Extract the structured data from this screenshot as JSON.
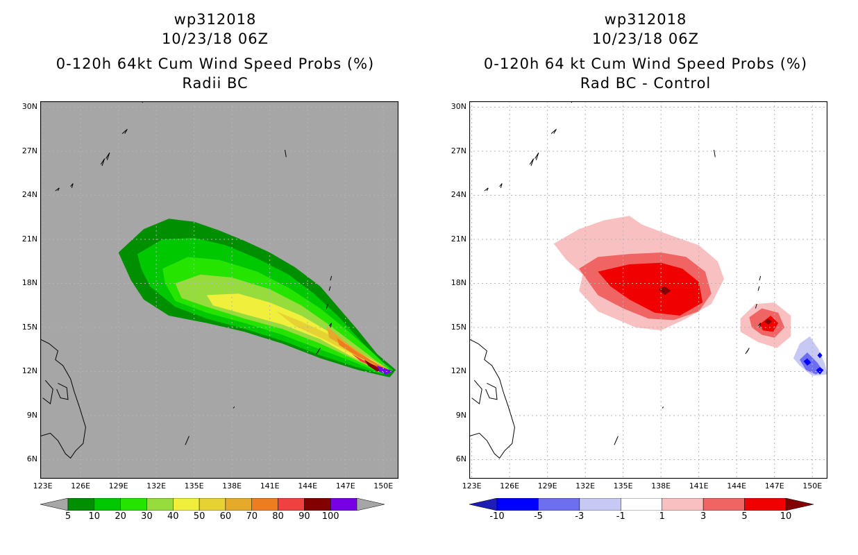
{
  "left": {
    "storm": "wp312018",
    "date": "10/23/18 06Z",
    "title": "0-120h 64kt Cum Wind Speed Probs (%)",
    "subtitle": "Radii BC"
  },
  "right": {
    "storm": "wp312018",
    "date": "10/23/18 06Z",
    "title": "0-120h 64 kt Cum Wind Speed Probs (%)",
    "subtitle": "Rad BC - Control"
  },
  "chart_data": [
    {
      "type": "heatmap",
      "panel": "left",
      "title": "0-120h 64kt Cum Wind Speed Probs (%)",
      "subtitle": "Radii BC",
      "x_ticks": [
        "123E",
        "126E",
        "129E",
        "132E",
        "135E",
        "138E",
        "141E",
        "144E",
        "147E",
        "150E"
      ],
      "y_ticks": [
        "30N",
        "27N",
        "24N",
        "21N",
        "18N",
        "15N",
        "12N",
        "9N",
        "6N"
      ],
      "xlim": [
        122.8,
        151.2
      ],
      "ylim": [
        4.7,
        30.4
      ],
      "background": "#a6a6a6",
      "colorbar": {
        "labels": [
          "5",
          "10",
          "20",
          "30",
          "40",
          "50",
          "60",
          "70",
          "80",
          "90",
          "100"
        ],
        "colors": [
          "#008f00",
          "#00c800",
          "#24e400",
          "#96dc3c",
          "#f0f03c",
          "#e6d232",
          "#e6aa2a",
          "#ee7d20",
          "#f04040",
          "#820000",
          "#7800e6"
        ]
      },
      "contours": [
        {
          "level": 5,
          "points": [
            [
              129,
              20.1
            ],
            [
              131,
              21.7
            ],
            [
              133,
              22.4
            ],
            [
              135,
              22.2
            ],
            [
              137,
              21.6
            ],
            [
              139,
              20.9
            ],
            [
              141,
              20.1
            ],
            [
              143,
              19.1
            ],
            [
              145,
              17.8
            ],
            [
              146.5,
              16.3
            ],
            [
              148,
              14.8
            ],
            [
              149.5,
              13.2
            ],
            [
              151,
              12.1
            ],
            [
              150.5,
              11.6
            ],
            [
              148,
              12.1
            ],
            [
              145,
              12.9
            ],
            [
              142,
              13.9
            ],
            [
              139,
              14.7
            ],
            [
              136,
              15.3
            ],
            [
              133,
              15.8
            ],
            [
              131,
              16.9
            ],
            [
              130,
              18.2
            ]
          ]
        },
        {
          "level": 10,
          "points": [
            [
              130.5,
              20
            ],
            [
              132.5,
              21
            ],
            [
              135,
              21.1
            ],
            [
              137.5,
              20.6
            ],
            [
              140,
              19.7
            ],
            [
              142.5,
              18.6
            ],
            [
              144.5,
              17.3
            ],
            [
              146.5,
              15.7
            ],
            [
              148.3,
              14
            ],
            [
              150,
              12.6
            ],
            [
              150.8,
              12.1
            ],
            [
              150,
              11.8
            ],
            [
              147.5,
              12.4
            ],
            [
              145,
              13.1
            ],
            [
              142,
              14.1
            ],
            [
              139,
              14.9
            ],
            [
              136,
              15.6
            ],
            [
              133.5,
              16.4
            ],
            [
              131.5,
              17.8
            ],
            [
              130.8,
              19
            ]
          ]
        },
        {
          "level": 20,
          "points": [
            [
              132.5,
              19
            ],
            [
              134.5,
              19.8
            ],
            [
              137,
              19.6
            ],
            [
              140,
              18.8
            ],
            [
              142.5,
              17.7
            ],
            [
              145,
              16.3
            ],
            [
              147,
              14.9
            ],
            [
              149,
              13.4
            ],
            [
              150.5,
              12.2
            ],
            [
              149.5,
              12
            ],
            [
              147.5,
              12.7
            ],
            [
              145,
              13.5
            ],
            [
              142,
              14.5
            ],
            [
              139,
              15.3
            ],
            [
              136,
              16
            ],
            [
              133.5,
              16.8
            ],
            [
              132.7,
              18
            ]
          ]
        },
        {
          "level": 30,
          "points": [
            [
              133.5,
              18
            ],
            [
              135.5,
              18.6
            ],
            [
              138,
              18.4
            ],
            [
              141,
              17.6
            ],
            [
              143.5,
              16.5
            ],
            [
              145.5,
              15.3
            ],
            [
              147.5,
              14
            ],
            [
              149.5,
              12.7
            ],
            [
              150.5,
              12.1
            ],
            [
              149.5,
              12.1
            ],
            [
              147.5,
              12.9
            ],
            [
              145,
              13.9
            ],
            [
              142,
              14.9
            ],
            [
              139,
              15.6
            ],
            [
              136,
              16.4
            ],
            [
              134,
              17
            ]
          ]
        },
        {
          "level": 40,
          "points": [
            [
              136,
              17.2
            ],
            [
              138.5,
              17.3
            ],
            [
              141,
              16.7
            ],
            [
              143.5,
              15.8
            ],
            [
              145.5,
              14.8
            ],
            [
              147.5,
              13.6
            ],
            [
              149.7,
              12.5
            ],
            [
              150.5,
              12.1
            ],
            [
              149.5,
              12.2
            ],
            [
              147.3,
              13.1
            ],
            [
              145,
              14.2
            ],
            [
              142,
              15.2
            ],
            [
              139,
              15.9
            ],
            [
              136.5,
              16.5
            ]
          ]
        },
        {
          "level": 50,
          "points": [
            [
              141.5,
              16.1
            ],
            [
              143.5,
              15.4
            ],
            [
              145.5,
              14.6
            ],
            [
              147.5,
              13.5
            ],
            [
              149.7,
              12.4
            ],
            [
              150.5,
              12.1
            ],
            [
              149.5,
              12.3
            ],
            [
              147.5,
              13.2
            ],
            [
              145.5,
              14.1
            ],
            [
              143,
              15.1
            ]
          ]
        },
        {
          "level": 60,
          "points": [
            [
              145.5,
              15.1
            ],
            [
              147,
              14
            ],
            [
              149,
              12.8
            ],
            [
              150.5,
              12.1
            ],
            [
              149.5,
              12.4
            ],
            [
              147.5,
              13.4
            ],
            [
              145.7,
              14.3
            ]
          ]
        },
        {
          "level": 70,
          "points": [
            [
              146.3,
              14.3
            ],
            [
              147.8,
              13.4
            ],
            [
              149.5,
              12.5
            ],
            [
              150.5,
              12.1
            ],
            [
              149.5,
              12.4
            ],
            [
              148,
              13
            ],
            [
              146.5,
              13.8
            ]
          ]
        },
        {
          "level": 80,
          "points": [
            [
              147.5,
              13.2
            ],
            [
              148.8,
              12.6
            ],
            [
              150.5,
              12.1
            ],
            [
              149.5,
              12.2
            ],
            [
              148.2,
              12.7
            ]
          ]
        },
        {
          "level": 90,
          "points": [
            [
              148.5,
              12.8
            ],
            [
              149.5,
              12.3
            ],
            [
              150.5,
              12
            ],
            [
              149.5,
              12
            ],
            [
              148.8,
              12.4
            ]
          ]
        },
        {
          "level": 100,
          "points": [
            [
              149.5,
              12.4
            ],
            [
              150.2,
              12.2
            ],
            [
              150.8,
              12
            ],
            [
              150.2,
              11.8
            ],
            [
              149.7,
              12
            ]
          ]
        }
      ]
    },
    {
      "type": "heatmap",
      "panel": "right",
      "title": "0-120h 64 kt Cum Wind Speed Probs (%)",
      "subtitle": "Rad BC - Control",
      "x_ticks": [
        "123E",
        "126E",
        "129E",
        "132E",
        "135E",
        "138E",
        "141E",
        "144E",
        "147E",
        "150E"
      ],
      "y_ticks": [
        "30N",
        "27N",
        "24N",
        "21N",
        "18N",
        "15N",
        "12N",
        "9N",
        "6N"
      ],
      "xlim": [
        122.8,
        151.2
      ],
      "ylim": [
        4.7,
        30.4
      ],
      "background": "#ffffff",
      "colorbar": {
        "labels": [
          "-10",
          "-5",
          "-3",
          "-1",
          "1",
          "3",
          "5",
          "10"
        ],
        "colors": [
          "#1e1eb4",
          "#0000ff",
          "#6e6ef0",
          "#c8c8f5",
          "#ffffff",
          "#f8c0c0",
          "#f06464",
          "#f00000",
          "#820000"
        ]
      },
      "contours": [
        {
          "level": 1,
          "points": [
            [
              129.5,
              20.7
            ],
            [
              131.5,
              21.7
            ],
            [
              133.5,
              22.3
            ],
            [
              135.5,
              22.6
            ],
            [
              136.5,
              22
            ],
            [
              139,
              21.2
            ],
            [
              141,
              20.6
            ],
            [
              142.5,
              19.5
            ],
            [
              143,
              18.3
            ],
            [
              142,
              16.6
            ],
            [
              140,
              15.6
            ],
            [
              138,
              14.8
            ],
            [
              136,
              15
            ],
            [
              133,
              16.1
            ],
            [
              131.5,
              17.5
            ],
            [
              131.8,
              18.6
            ],
            [
              130.5,
              19.6
            ]
          ]
        },
        {
          "level": 3,
          "points": [
            [
              131.5,
              19
            ],
            [
              133,
              19.8
            ],
            [
              135.5,
              20
            ],
            [
              138,
              20.1
            ],
            [
              140,
              19.8
            ],
            [
              141.5,
              18.8
            ],
            [
              142,
              17.3
            ],
            [
              141,
              16.1
            ],
            [
              139,
              15.5
            ],
            [
              137,
              15.6
            ],
            [
              135,
              16.3
            ],
            [
              133,
              17.2
            ]
          ]
        },
        {
          "level": 5,
          "points": [
            [
              133,
              18.8
            ],
            [
              135.5,
              19.3
            ],
            [
              138,
              19.4
            ],
            [
              139.7,
              19
            ],
            [
              141,
              18.1
            ],
            [
              141.3,
              16.7
            ],
            [
              139.5,
              15.8
            ],
            [
              137.5,
              16
            ],
            [
              135.5,
              16.9
            ],
            [
              134,
              17.8
            ]
          ]
        },
        {
          "level": 10,
          "points": [
            [
              137.8,
              17.6
            ],
            [
              138.3,
              17.8
            ],
            [
              138.8,
              17.5
            ],
            [
              138.3,
              17.2
            ]
          ]
        },
        {
          "level": 1,
          "points": [
            [
              144.3,
              15.6
            ],
            [
              145.5,
              16.6
            ],
            [
              147,
              16.7
            ],
            [
              148.3,
              15.8
            ],
            [
              148.3,
              14.4
            ],
            [
              147.2,
              13.6
            ],
            [
              145.7,
              14
            ],
            [
              144.3,
              14.7
            ]
          ]
        },
        {
          "level": 3,
          "points": [
            [
              145,
              15.7
            ],
            [
              146,
              16.3
            ],
            [
              147.3,
              16
            ],
            [
              147.8,
              15
            ],
            [
              147,
              14.3
            ],
            [
              146,
              14.5
            ],
            [
              145.2,
              15
            ]
          ]
        },
        {
          "level": 5,
          "points": [
            [
              145.8,
              15.2
            ],
            [
              146.7,
              15.8
            ],
            [
              147.3,
              15.3
            ],
            [
              146.9,
              14.7
            ],
            [
              146.1,
              14.8
            ]
          ]
        },
        {
          "level": 10,
          "points": [
            [
              146.2,
              15.4
            ],
            [
              146.5,
              15.6
            ],
            [
              146.8,
              15.4
            ],
            [
              146.5,
              15.2
            ]
          ]
        },
        {
          "level": -1,
          "points": [
            [
              148.5,
              12.9
            ],
            [
              149,
              13.9
            ],
            [
              149.8,
              14.4
            ],
            [
              150.5,
              13.5
            ],
            [
              151,
              12.5
            ],
            [
              151.2,
              11.8
            ],
            [
              150,
              11.7
            ],
            [
              149,
              12.4
            ]
          ]
        },
        {
          "level": -3,
          "points": [
            [
              149,
              12.8
            ],
            [
              149.6,
              13.3
            ],
            [
              150.4,
              12.6
            ],
            [
              150.8,
              12.1
            ],
            [
              150.3,
              11.8
            ],
            [
              149.5,
              12.1
            ]
          ]
        },
        {
          "level": -5,
          "points": [
            [
              149.3,
              12.7
            ],
            [
              149.6,
              12.9
            ],
            [
              149.9,
              12.6
            ],
            [
              149.6,
              12.4
            ]
          ]
        },
        {
          "level": -5,
          "points": [
            [
              150.4,
              13.1
            ],
            [
              150.6,
              13.3
            ],
            [
              150.8,
              13.1
            ],
            [
              150.6,
              12.9
            ]
          ]
        },
        {
          "level": -5,
          "points": [
            [
              150.3,
              12.1
            ],
            [
              150.6,
              12.3
            ],
            [
              150.9,
              12.1
            ],
            [
              150.6,
              11.8
            ]
          ]
        }
      ]
    }
  ]
}
